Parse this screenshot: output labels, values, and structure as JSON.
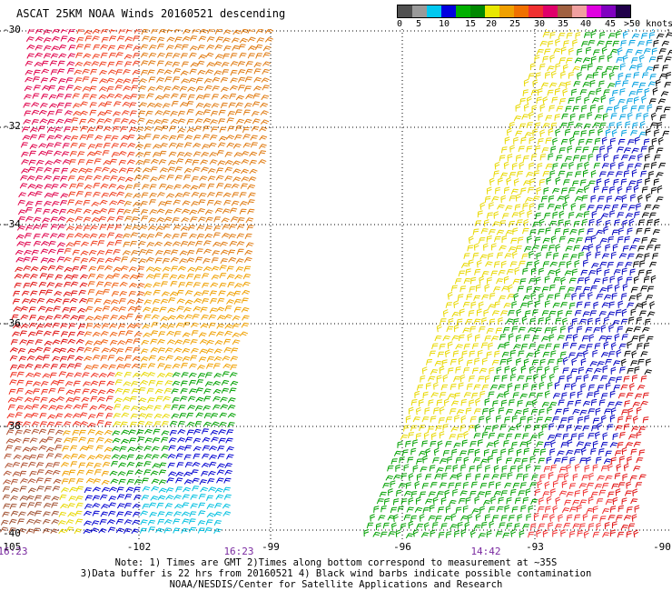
{
  "title": "ASCAT 25KM NOAA Winds 20160521 descending",
  "legend": {
    "colors": [
      "#505050",
      "#9a9a9a",
      "#00c8f0",
      "#0000e0",
      "#00b000",
      "#008800",
      "#e8e800",
      "#f0a000",
      "#f07000",
      "#f03030",
      "#e0006a",
      "#a06040",
      "#f0a0a0",
      "#e000e0",
      "#8000c0",
      "#20004a"
    ],
    "labels": [
      "0",
      "5",
      "10",
      "15",
      "20",
      "25",
      "30",
      "35",
      "40",
      "45",
      ">50 knots"
    ]
  },
  "map": {
    "lat_labels": [
      "-30",
      "-32",
      "-34",
      "-36",
      "-38",
      "-40"
    ],
    "lon_labels": [
      "-105",
      "-102",
      "-99",
      "-96",
      "-93",
      "-90"
    ],
    "time_labels": [
      "16:23",
      "16:23",
      "14:42"
    ]
  },
  "notes": {
    "line1": "Note: 1) Times are GMT 2)Times along bottom correspond to measurement at ~35S",
    "line2": "3)Data buffer is 22 hrs from 20160521 4) Black wind barbs indicate possible contamination",
    "line3": "NOAA/NESDIS/Center for Satellite Applications and Research"
  }
}
